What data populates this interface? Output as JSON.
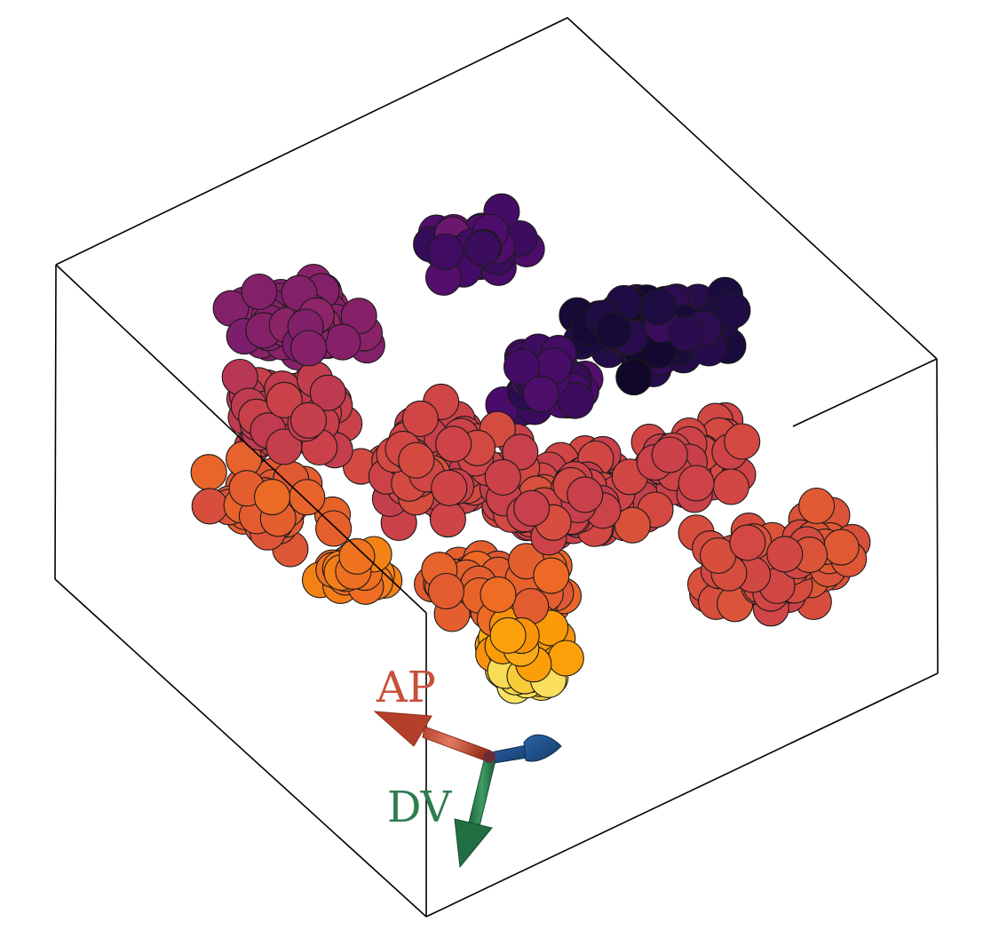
{
  "figure": {
    "description_type": "3d-cell-cluster-render",
    "axis_labels": {
      "ap": "AP",
      "dv": "DV"
    },
    "colors": {
      "ap_axis": "#c8503a",
      "dv_axis": "#2e7d4f",
      "third_axis": "#1f4e87",
      "box_edge": "#000000",
      "cell_outline": "#1a1a1a"
    },
    "colormap": "inferno",
    "colormap_stops": [
      "#000004",
      "#1b0c41",
      "#4a0c6b",
      "#781c6d",
      "#a52c60",
      "#cf4446",
      "#ed6925",
      "#fb9b06",
      "#f7d13d",
      "#fcffa4"
    ]
  }
}
